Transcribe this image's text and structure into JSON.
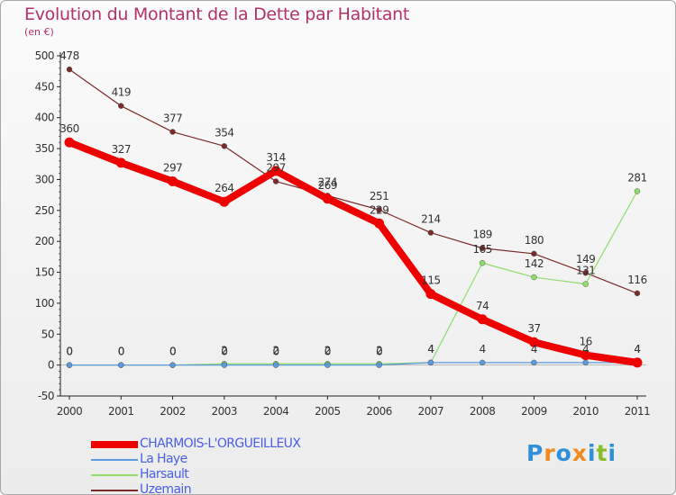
{
  "title": "Evolution du Montant de la Dette par Habitant",
  "subtitle": "(en €)",
  "logo_text": "Proxiti",
  "chart_data": {
    "type": "line",
    "x": [
      "2000",
      "2001",
      "2002",
      "2003",
      "2004",
      "2005",
      "2006",
      "2007",
      "2008",
      "2009",
      "2010",
      "2011"
    ],
    "ylim": [
      -50,
      500
    ],
    "yticks": [
      -50,
      0,
      50,
      100,
      150,
      200,
      250,
      300,
      350,
      400,
      450,
      500
    ],
    "grid": false,
    "legend_position": "bottom-left",
    "series": [
      {
        "name": "CHARMOIS-L'ORGUEILLEUX",
        "color": "#ee0000",
        "values": [
          360,
          327,
          297,
          264,
          314,
          269,
          229,
          115,
          74,
          37,
          16,
          4
        ]
      },
      {
        "name": "La Haye",
        "color": "#5a9be0",
        "values": [
          0,
          0,
          0,
          0,
          0,
          0,
          0,
          4,
          4,
          4,
          4,
          4
        ]
      },
      {
        "name": "Harsault",
        "color": "#90dd6c",
        "values": [
          0,
          0,
          0,
          2,
          2,
          2,
          2,
          4,
          165,
          142,
          131,
          281
        ]
      },
      {
        "name": "Uzemain",
        "color": "#7a2a2a",
        "values": [
          478,
          419,
          377,
          354,
          297,
          274,
          251,
          214,
          189,
          180,
          149,
          116
        ]
      }
    ]
  }
}
